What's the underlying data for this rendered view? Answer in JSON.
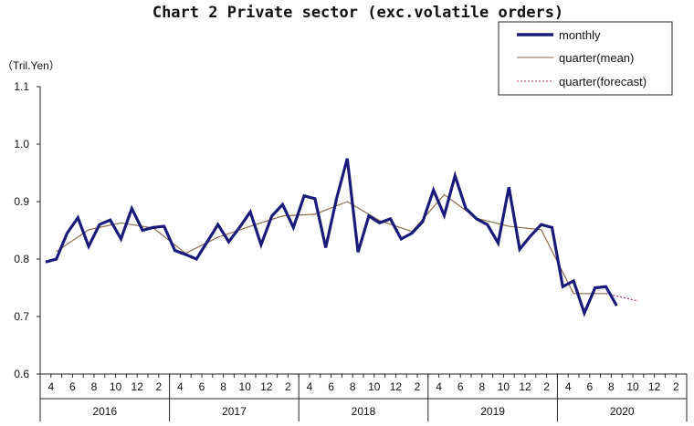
{
  "chart_data": {
    "type": "line",
    "title": "Chart 2 Private sector (exc.volatile orders)",
    "ylabel": "（Tril.Yen）",
    "ylim": [
      0.6,
      1.1
    ],
    "yticks": [
      "0.6",
      "0.7",
      "0.8",
      "0.9",
      "1.0",
      "1.1"
    ],
    "x_month_labels": [
      "4",
      "6",
      "8",
      "10",
      "12",
      "2",
      "4",
      "6",
      "8",
      "10",
      "12",
      "2",
      "4",
      "6",
      "8",
      "10",
      "12",
      "2",
      "4",
      "6",
      "8",
      "10",
      "12",
      "2",
      "4",
      "6",
      "8",
      "10",
      "12",
      "2"
    ],
    "years": [
      "2016",
      "2017",
      "2018",
      "2019",
      "2020"
    ],
    "legend": [
      "monthly",
      "quarter(mean)",
      "quarter(forecast)"
    ],
    "colors": {
      "monthly": "#1a1a7a",
      "mean": "#8a6d4a",
      "forecast": "#b0307a"
    },
    "series": [
      {
        "name": "monthly",
        "values": [
          0.795,
          0.8,
          0.845,
          0.872,
          0.822,
          0.86,
          0.868,
          0.835,
          0.888,
          0.85,
          0.855,
          0.857,
          0.815,
          0.808,
          0.8,
          0.83,
          0.86,
          0.83,
          0.855,
          0.882,
          0.825,
          0.875,
          0.895,
          0.855,
          0.91,
          0.905,
          0.82,
          0.905,
          0.975,
          0.812,
          0.875,
          0.863,
          0.87,
          0.835,
          0.845,
          0.865,
          0.92,
          0.876,
          0.945,
          0.888,
          0.87,
          0.86,
          0.828,
          0.925,
          0.817,
          0.84,
          0.86,
          0.855,
          0.752,
          0.762,
          0.706,
          0.75,
          0.752,
          0.719
        ]
      },
      {
        "name": "quarter(mean)",
        "values": [
          null,
          0.813,
          null,
          null,
          0.851,
          null,
          null,
          0.863,
          null,
          null,
          0.854,
          null,
          null,
          0.81,
          null,
          null,
          0.838,
          null,
          null,
          0.857,
          null,
          null,
          0.875,
          null,
          null,
          0.878,
          null,
          null,
          0.9,
          null,
          null,
          0.867,
          null,
          null,
          0.848,
          null,
          null,
          0.912,
          null,
          null,
          0.871,
          null,
          null,
          0.857,
          null,
          null,
          0.851,
          null,
          null,
          0.74,
          null,
          null,
          0.74,
          null
        ]
      },
      {
        "name": "quarter(forecast)",
        "values": [
          null,
          null,
          null,
          null,
          null,
          null,
          null,
          null,
          null,
          null,
          null,
          null,
          null,
          null,
          null,
          null,
          null,
          null,
          null,
          null,
          null,
          null,
          null,
          null,
          null,
          null,
          null,
          null,
          null,
          null,
          null,
          null,
          null,
          null,
          null,
          null,
          null,
          null,
          null,
          null,
          null,
          null,
          null,
          null,
          null,
          null,
          null,
          null,
          null,
          null,
          null,
          null,
          0.74,
          null,
          null,
          0.727,
          null,
          null
        ]
      }
    ]
  }
}
